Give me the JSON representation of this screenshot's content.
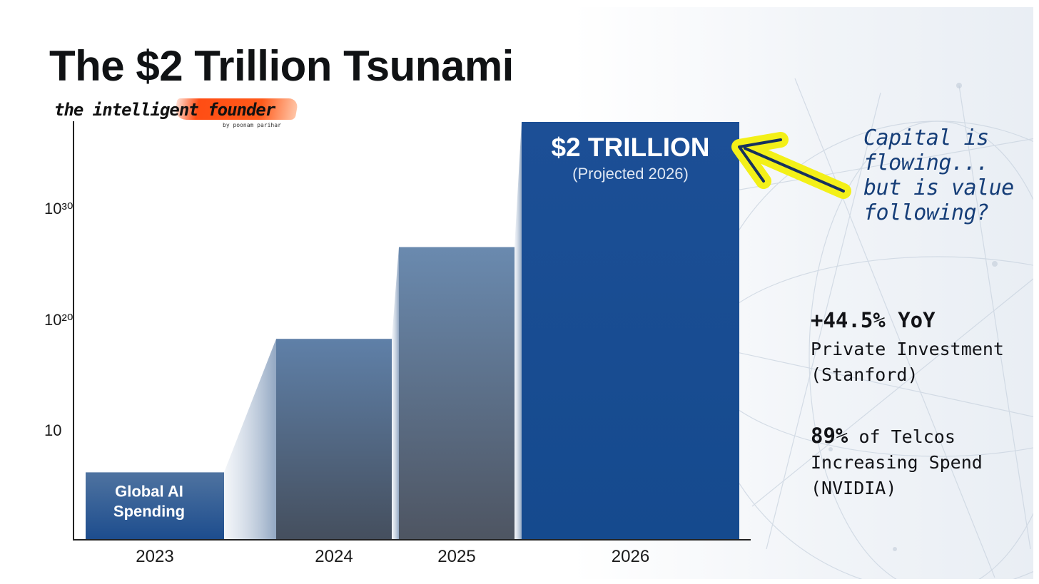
{
  "title": "The $2 Trillion Tsunami",
  "brand": {
    "name": "the intelligent founder",
    "byline": "by poonam parihar"
  },
  "chart_data": {
    "type": "bar",
    "categories": [
      "2023",
      "2024",
      "2025",
      "2026"
    ],
    "values": [
      0.16,
      0.48,
      0.7,
      1.0
    ],
    "y_scale": "log",
    "y_tick_labels": [
      "10",
      "10²⁰",
      "10³⁰"
    ],
    "bar_labels": [
      {
        "category": "2023",
        "lines": [
          "Global AI",
          "Spending"
        ]
      },
      {
        "category": "2026",
        "lines": [
          "$2 TRILLION",
          "(Projected 2026)"
        ]
      }
    ],
    "colors": {
      "primary": "#1a4f94",
      "mid": "#5b7396",
      "dark": "#4b5a6d",
      "connector": "#b7c6d9"
    },
    "grid": false,
    "legend": "none"
  },
  "annotation": {
    "lines": [
      "Capital is",
      "flowing...",
      "but is value",
      "following?"
    ],
    "arrow_color": "#f3f018"
  },
  "stats": [
    {
      "headline": "+44.5% YoY",
      "lines": [
        "Private Investment",
        "(Stanford)"
      ]
    },
    {
      "headline": "89%",
      "headline_rest": " of Telcos",
      "lines": [
        "Increasing Spend",
        "(NVIDIA)"
      ]
    }
  ]
}
